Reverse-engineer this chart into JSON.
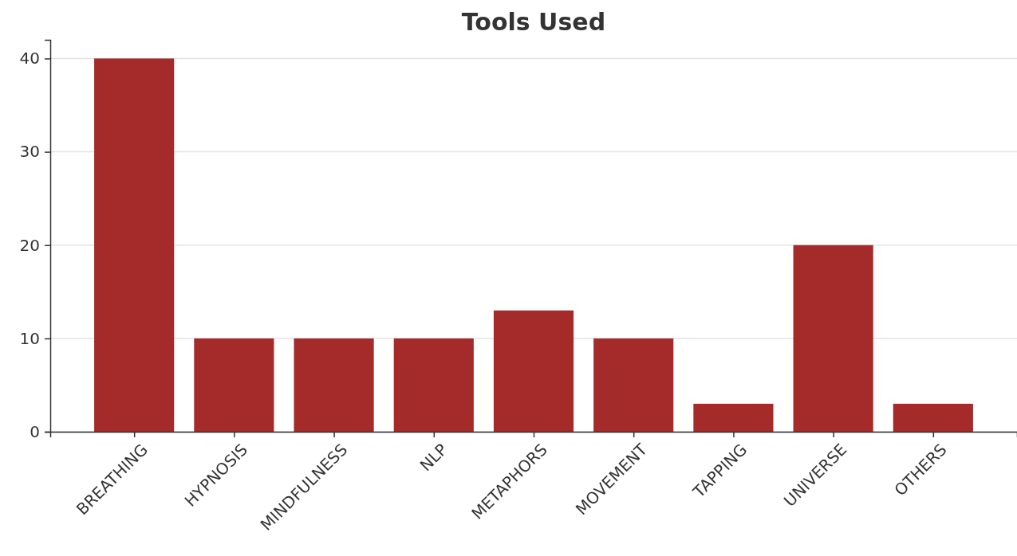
{
  "chart_data": {
    "type": "bar",
    "title": "Tools Used",
    "categories": [
      "BREATHING",
      "HYPNOSIS",
      "MINDFULNESS",
      "NLP",
      "METAPHORS",
      "MOVEMENT",
      "TAPPING",
      "UNIVERSE",
      "OTHERS"
    ],
    "values": [
      40,
      10,
      10,
      10,
      13,
      10,
      3,
      20,
      3
    ],
    "color": "#a52a2a",
    "ylim": [
      0,
      42
    ],
    "yticks": [
      0,
      10,
      20,
      30,
      40
    ],
    "grid": "y"
  }
}
